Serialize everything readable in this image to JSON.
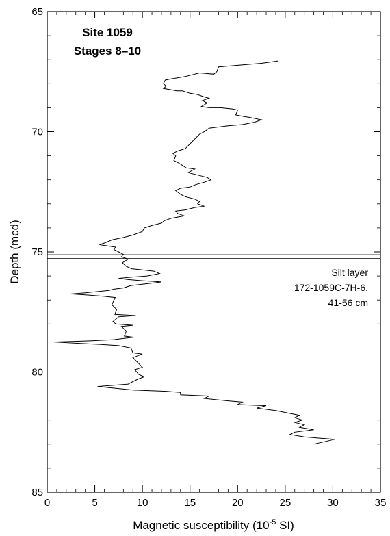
{
  "chart_data": {
    "type": "line",
    "title_lines": [
      "Site 1059",
      "Stages 8–10"
    ],
    "xlabel_main": "Magnetic susceptibility (10",
    "xlabel_sup": "-5",
    "xlabel_tail": " SI)",
    "ylabel": "Depth (mcd)",
    "xlim": [
      0,
      35
    ],
    "ylim": [
      65,
      85
    ],
    "y_inverted": true,
    "x_ticks": [
      0,
      5,
      10,
      15,
      20,
      25,
      30,
      35
    ],
    "x_tick_labels": [
      "0",
      "5",
      "10",
      "15",
      "20",
      "25",
      "30",
      "35"
    ],
    "y_ticks": [
      65,
      70,
      75,
      80,
      85
    ],
    "y_tick_labels": [
      "65",
      "70",
      "75",
      "80",
      "85"
    ],
    "grid": false,
    "annotation": {
      "lines": [
        "Silt layer",
        "172-1059C-7H-6,",
        "41-56 cm"
      ],
      "depth_lines": [
        75.12,
        75.28
      ]
    },
    "series": [
      {
        "points": [
          [
            24.3,
            67.05
          ],
          [
            22.5,
            67.15
          ],
          [
            18.0,
            67.3
          ],
          [
            17.8,
            67.5
          ],
          [
            17.5,
            67.6
          ],
          [
            16.0,
            67.55
          ],
          [
            14.5,
            67.7
          ],
          [
            13.0,
            67.8
          ],
          [
            12.4,
            67.85
          ],
          [
            12.2,
            68.0
          ],
          [
            12.5,
            68.1
          ],
          [
            12.2,
            68.2
          ],
          [
            13.0,
            68.25
          ],
          [
            13.6,
            68.3
          ],
          [
            14.2,
            68.3
          ],
          [
            15.0,
            68.4
          ],
          [
            15.8,
            68.45
          ],
          [
            16.5,
            68.55
          ],
          [
            17.0,
            68.6
          ],
          [
            16.3,
            68.7
          ],
          [
            16.8,
            68.8
          ],
          [
            16.2,
            68.95
          ],
          [
            17.0,
            69.0
          ],
          [
            18.2,
            69.0
          ],
          [
            19.5,
            69.05
          ],
          [
            20.0,
            69.1
          ],
          [
            19.8,
            69.3
          ],
          [
            20.5,
            69.35
          ],
          [
            21.2,
            69.4
          ],
          [
            22.5,
            69.5
          ],
          [
            21.8,
            69.6
          ],
          [
            20.5,
            69.7
          ],
          [
            19.0,
            69.75
          ],
          [
            18.0,
            69.8
          ],
          [
            17.0,
            69.85
          ],
          [
            16.5,
            70.0
          ],
          [
            16.0,
            70.1
          ],
          [
            15.5,
            70.3
          ],
          [
            15.0,
            70.5
          ],
          [
            14.5,
            70.7
          ],
          [
            13.7,
            70.8
          ],
          [
            13.2,
            70.9
          ],
          [
            13.5,
            71.0
          ],
          [
            13.3,
            71.2
          ],
          [
            13.8,
            71.3
          ],
          [
            14.2,
            71.4
          ],
          [
            14.6,
            71.5
          ],
          [
            15.5,
            71.55
          ],
          [
            14.8,
            71.7
          ],
          [
            15.8,
            71.8
          ],
          [
            16.8,
            71.9
          ],
          [
            17.2,
            72.0
          ],
          [
            16.5,
            72.1
          ],
          [
            15.6,
            72.2
          ],
          [
            15.0,
            72.3
          ],
          [
            14.0,
            72.35
          ],
          [
            13.5,
            72.45
          ],
          [
            14.0,
            72.6
          ],
          [
            14.5,
            72.7
          ],
          [
            15.5,
            72.8
          ],
          [
            16.0,
            72.9
          ],
          [
            15.8,
            73.0
          ],
          [
            16.5,
            73.1
          ],
          [
            15.5,
            73.15
          ],
          [
            14.5,
            73.25
          ],
          [
            13.5,
            73.3
          ],
          [
            13.7,
            73.4
          ],
          [
            14.4,
            73.5
          ],
          [
            13.0,
            73.6
          ],
          [
            12.3,
            73.7
          ],
          [
            12.0,
            73.8
          ],
          [
            11.0,
            73.9
          ],
          [
            10.2,
            74.0
          ],
          [
            10.0,
            74.15
          ],
          [
            9.0,
            74.3
          ],
          [
            8.0,
            74.4
          ],
          [
            6.8,
            74.5
          ],
          [
            6.2,
            74.6
          ],
          [
            5.5,
            74.7
          ],
          [
            7.2,
            74.8
          ],
          [
            7.0,
            74.9
          ],
          [
            7.5,
            75.0
          ],
          [
            8.0,
            75.1
          ],
          [
            7.8,
            75.2
          ],
          [
            8.5,
            75.3
          ],
          [
            7.9,
            75.45
          ],
          [
            8.3,
            75.6
          ],
          [
            8.9,
            75.7
          ],
          [
            10.0,
            75.75
          ],
          [
            11.2,
            75.8
          ],
          [
            11.8,
            75.9
          ],
          [
            10.5,
            76.0
          ],
          [
            8.8,
            76.05
          ],
          [
            7.5,
            76.1
          ],
          [
            8.5,
            76.15
          ],
          [
            10.0,
            76.2
          ],
          [
            12.0,
            76.25
          ],
          [
            11.0,
            76.3
          ],
          [
            8.8,
            76.4
          ],
          [
            8.0,
            76.5
          ],
          [
            7.0,
            76.55
          ],
          [
            6.5,
            76.6
          ],
          [
            4.0,
            76.7
          ],
          [
            2.5,
            76.75
          ],
          [
            4.5,
            76.8
          ],
          [
            6.0,
            76.85
          ],
          [
            7.2,
            76.9
          ],
          [
            7.0,
            77.0
          ],
          [
            6.8,
            77.2
          ],
          [
            7.3,
            77.4
          ],
          [
            7.1,
            77.6
          ],
          [
            9.3,
            77.65
          ],
          [
            7.5,
            77.7
          ],
          [
            6.9,
            77.9
          ],
          [
            7.2,
            78.0
          ],
          [
            9.0,
            78.05
          ],
          [
            7.8,
            78.1
          ],
          [
            8.3,
            78.3
          ],
          [
            8.1,
            78.5
          ],
          [
            9.1,
            78.55
          ],
          [
            8.0,
            78.6
          ],
          [
            7.0,
            78.65
          ],
          [
            4.5,
            78.7
          ],
          [
            0.7,
            78.75
          ],
          [
            3.0,
            78.8
          ],
          [
            5.5,
            78.85
          ],
          [
            7.5,
            78.9
          ],
          [
            8.8,
            79.0
          ],
          [
            9.0,
            79.2
          ],
          [
            10.0,
            79.25
          ],
          [
            9.0,
            79.4
          ],
          [
            9.5,
            79.6
          ],
          [
            10.0,
            79.8
          ],
          [
            9.2,
            79.9
          ],
          [
            9.6,
            80.1
          ],
          [
            10.2,
            80.2
          ],
          [
            9.5,
            80.3
          ],
          [
            9.0,
            80.4
          ],
          [
            8.5,
            80.5
          ],
          [
            7.0,
            80.55
          ],
          [
            5.3,
            80.6
          ],
          [
            6.5,
            80.65
          ],
          [
            9.0,
            80.75
          ],
          [
            12.5,
            80.8
          ],
          [
            14.0,
            80.85
          ],
          [
            14.0,
            80.95
          ],
          [
            17.0,
            81.0
          ],
          [
            16.5,
            81.1
          ],
          [
            19.0,
            81.2
          ],
          [
            20.5,
            81.25
          ],
          [
            20.0,
            81.35
          ],
          [
            23.0,
            81.4
          ],
          [
            22.0,
            81.5
          ],
          [
            24.0,
            81.6
          ],
          [
            26.5,
            81.8
          ],
          [
            26.0,
            81.9
          ],
          [
            26.8,
            82.0
          ],
          [
            26.0,
            82.1
          ],
          [
            27.0,
            82.2
          ],
          [
            26.5,
            82.3
          ],
          [
            28.0,
            82.4
          ],
          [
            26.0,
            82.5
          ],
          [
            25.5,
            82.6
          ],
          [
            27.0,
            82.7
          ],
          [
            28.5,
            82.75
          ],
          [
            30.2,
            82.8
          ],
          [
            28.0,
            83.0
          ]
        ]
      }
    ]
  }
}
